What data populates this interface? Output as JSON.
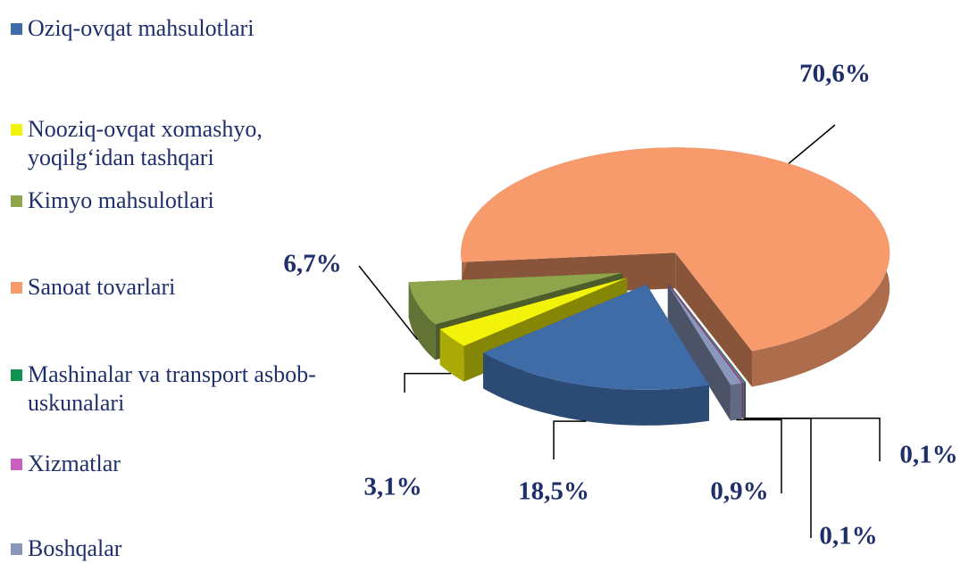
{
  "chart_data": {
    "type": "pie",
    "categories": [
      "Oziq-ovqat mahsulotlari",
      "Nooziq-ovqat xomashyo, yoqilg‘idan tashqari",
      "Kimyo mahsulotlari",
      "Sanoat tovarlari",
      "Mashinalar va transport asbob-uskunalari",
      "Xizmatlar",
      "Boshqalar"
    ],
    "values": [
      18.5,
      3.1,
      6.7,
      70.6,
      0.1,
      0.1,
      0.9
    ],
    "value_labels": [
      "18,5%",
      "3,1%",
      "6,7%",
      "70,6%",
      "0,1%",
      "0,1%",
      "0,9%"
    ],
    "colors": [
      "#3f6ba6",
      "#f2f20a",
      "#8ea54c",
      "#f79a6c",
      "#12924f",
      "#c860c0",
      "#8a97bb"
    ],
    "legend": "left"
  }
}
